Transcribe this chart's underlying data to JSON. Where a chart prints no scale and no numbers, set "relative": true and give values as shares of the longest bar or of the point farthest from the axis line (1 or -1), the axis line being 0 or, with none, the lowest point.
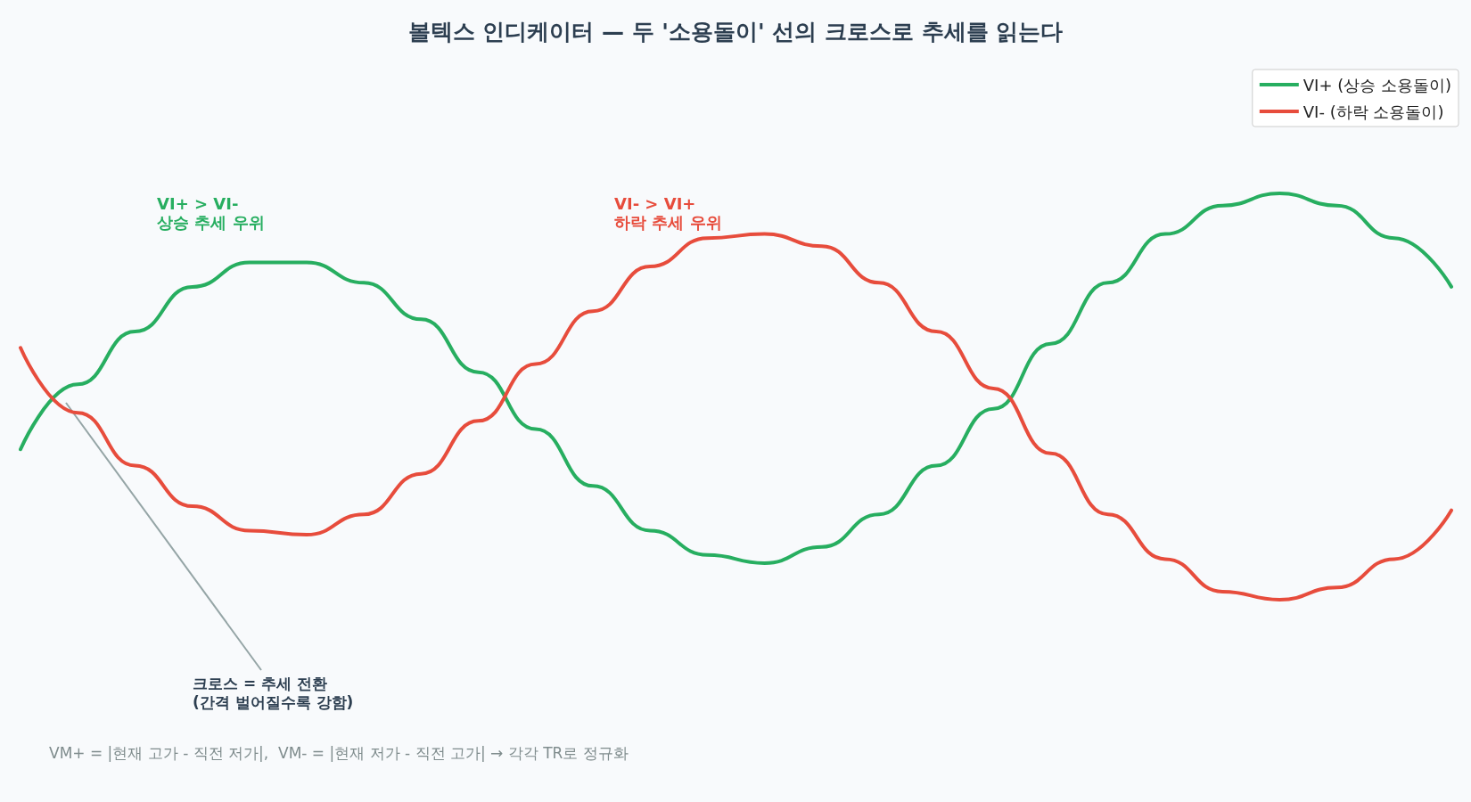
{
  "chart_data": {
    "type": "line",
    "title": "볼텍스 인디케이터 — 두 '소용돌이' 선의 크로스로 추세를 읽는다",
    "relative": true,
    "categories": [
      null,
      null,
      null,
      null,
      null,
      null,
      null,
      null,
      null,
      null,
      null,
      null,
      null,
      null,
      null,
      null,
      null,
      null,
      null,
      null,
      null,
      null,
      null,
      null,
      null,
      null
    ],
    "series": [
      {
        "name": "VI+ (상승 소용돌이)",
        "color": "#27ae60",
        "values": [
          0.37,
          0.53,
          0.66,
          0.77,
          0.83,
          0.83,
          0.78,
          0.69,
          0.56,
          0.42,
          0.28,
          0.17,
          0.11,
          0.09,
          0.13,
          0.21,
          0.33,
          0.47,
          0.63,
          0.78,
          0.9,
          0.97,
          1.0,
          0.97,
          0.89,
          0.77
        ]
      },
      {
        "name": "VI- (하락 소용돌이)",
        "color": "#e74c3c",
        "values": [
          0.62,
          0.46,
          0.33,
          0.23,
          0.17,
          0.16,
          0.21,
          0.31,
          0.44,
          0.58,
          0.71,
          0.82,
          0.89,
          0.9,
          0.87,
          0.78,
          0.66,
          0.52,
          0.36,
          0.21,
          0.1,
          0.02,
          0.0,
          0.03,
          0.1,
          0.22
        ]
      }
    ],
    "annotations": [
      "VI+ > VI-\n상승 추세 우위",
      "VI- > VI+\n하락 추세 우위",
      "크로스 = 추세 전환\n(간격 벌어질수록 강함)",
      "VM+ = |현재 고가 - 직전 저가|,  VM- = |현재 저가 - 직전 고가| → 각각 TR로 정규화"
    ],
    "legend": "top right",
    "marker": "none",
    "line_style": "solid",
    "grid": false
  }
}
